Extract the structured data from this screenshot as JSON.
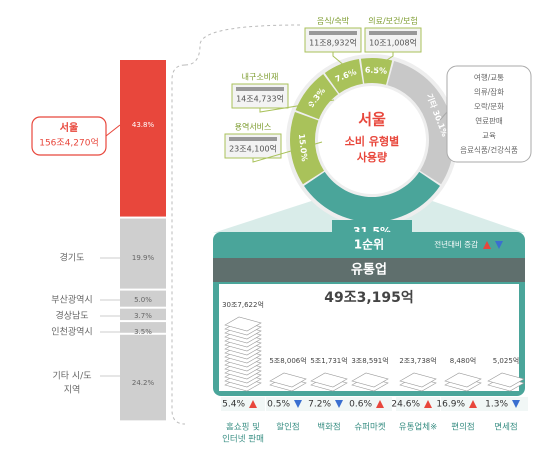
{
  "region_bar": {
    "segments": [
      {
        "name_lines": [
          "서울"
        ],
        "amount": "156조4,270억",
        "value": 43.8,
        "value_label": "43.8%"
      },
      {
        "name_lines": [
          "경기도"
        ],
        "value": 19.9,
        "value_label": "19.9%"
      },
      {
        "name_lines": [
          "부산광역시"
        ],
        "value": 5.0,
        "value_label": "5.0%"
      },
      {
        "name_lines": [
          "경상남도"
        ],
        "value": 3.7,
        "value_label": "3.7%"
      },
      {
        "name_lines": [
          "인천광역시"
        ],
        "value": 3.5,
        "value_label": "3.5%"
      },
      {
        "name_lines": [
          "기타 시/도",
          "지역"
        ],
        "value": 24.2,
        "value_label": "24.2%"
      }
    ]
  },
  "donut": {
    "center_lines": [
      "서울",
      "소비 유형별",
      "사용량"
    ],
    "segments": [
      {
        "name": "유통업",
        "value": 31.5,
        "value_label": "31.5%",
        "color": "#4aa59a"
      },
      {
        "name": "용역서비스",
        "amount": "23조4,100억",
        "value": 15.0,
        "value_label": "15.0%",
        "color": "#a9c25a"
      },
      {
        "name": "내구소비재",
        "amount": "14조4,733억",
        "value": 9.3,
        "value_label": "9.3%",
        "color": "#a9c25a"
      },
      {
        "name": "음식/숙박",
        "amount": "11조8,932억",
        "value": 7.6,
        "value_label": "7.6%",
        "color": "#a9c25a"
      },
      {
        "name": "의료/보건/보험",
        "amount": "10조1,008억",
        "value": 6.5,
        "value_label": "6.5%",
        "color": "#a9c25a"
      },
      {
        "name": "기타",
        "value": 30.1,
        "value_label": "기타 30.1%",
        "color": "#c8c8c8"
      }
    ],
    "other_items": [
      "여행/교통",
      "의류/잡화",
      "오락/문화",
      "연료판매",
      "교육",
      "음료식품/건강식품"
    ]
  },
  "panel": {
    "rank": "1순위",
    "legend": "전년대비 증감",
    "title": "유통업",
    "total": "49조3,195억",
    "items": [
      {
        "name_lines": [
          "홈쇼핑 및",
          "인터넷 판매"
        ],
        "amount": "30조7,622억",
        "change": 5.4,
        "change_label": "5.4%",
        "direction": "up"
      },
      {
        "name_lines": [
          "할인점"
        ],
        "amount": "5조8,006억",
        "change": 0.5,
        "change_label": "0.5%",
        "direction": "down"
      },
      {
        "name_lines": [
          "백화점"
        ],
        "amount": "5조1,731억",
        "change": 7.2,
        "change_label": "7.2%",
        "direction": "down"
      },
      {
        "name_lines": [
          "슈퍼마켓"
        ],
        "amount": "3조8,591억",
        "change": 0.6,
        "change_label": "0.6%",
        "direction": "up"
      },
      {
        "name_lines": [
          "유통업체※"
        ],
        "amount": "2조3,738억",
        "change": 24.6,
        "change_label": "24.6%",
        "direction": "up"
      },
      {
        "name_lines": [
          "편의점"
        ],
        "amount": "8,480억",
        "change": 16.9,
        "change_label": "16.9%",
        "direction": "up"
      },
      {
        "name_lines": [
          "면세점"
        ],
        "amount": "5,025억",
        "change": 1.3,
        "change_label": "1.3%",
        "direction": "down"
      }
    ]
  }
}
